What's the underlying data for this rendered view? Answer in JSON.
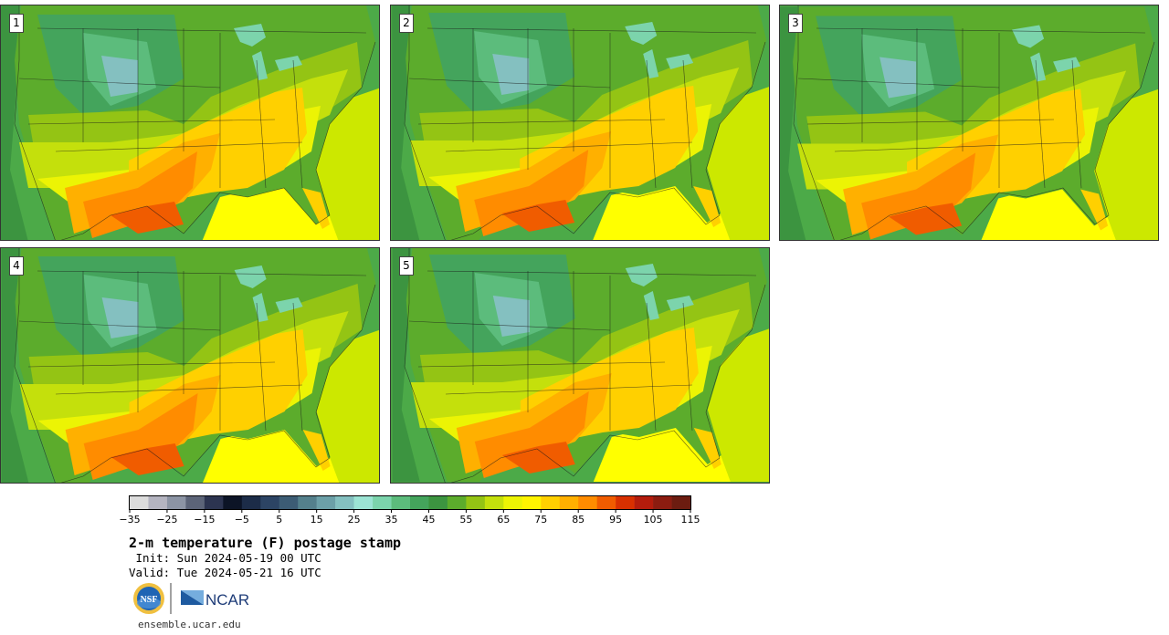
{
  "panels": [
    {
      "label": "1"
    },
    {
      "label": "2"
    },
    {
      "label": "3"
    },
    {
      "label": "4"
    },
    {
      "label": "5"
    }
  ],
  "colorbar": {
    "colors": [
      "#dcdcdc",
      "#b4b4c0",
      "#8c94a4",
      "#5c6478",
      "#2c3450",
      "#0c1426",
      "#1c2c48",
      "#2c4464",
      "#3c5c74",
      "#54808c",
      "#6ca0a8",
      "#84c0c0",
      "#9ce4d4",
      "#7cd4ac",
      "#5cbc7c",
      "#44a45c",
      "#3c9440",
      "#5cac2c",
      "#94c414",
      "#c4e00c",
      "#ecf404",
      "#fff400",
      "#ffd000",
      "#ffb000",
      "#ff8c00",
      "#f05c00",
      "#d83000",
      "#b41c0c",
      "#8c1c10",
      "#6c1c10"
    ],
    "tick_labels": [
      "−35",
      "−25",
      "−15",
      "−5",
      "5",
      "15",
      "25",
      "35",
      "45",
      "55",
      "65",
      "75",
      "85",
      "95",
      "105",
      "115"
    ]
  },
  "title": "2-m temperature (F) postage stamp",
  "init": " Init: Sun 2024-05-19 00 UTC",
  "valid": "Valid: Tue 2024-05-21 16 UTC",
  "logos": {
    "nsf": "NSF",
    "ncar": "NCAR"
  },
  "website": "ensemble.ucar.edu"
}
